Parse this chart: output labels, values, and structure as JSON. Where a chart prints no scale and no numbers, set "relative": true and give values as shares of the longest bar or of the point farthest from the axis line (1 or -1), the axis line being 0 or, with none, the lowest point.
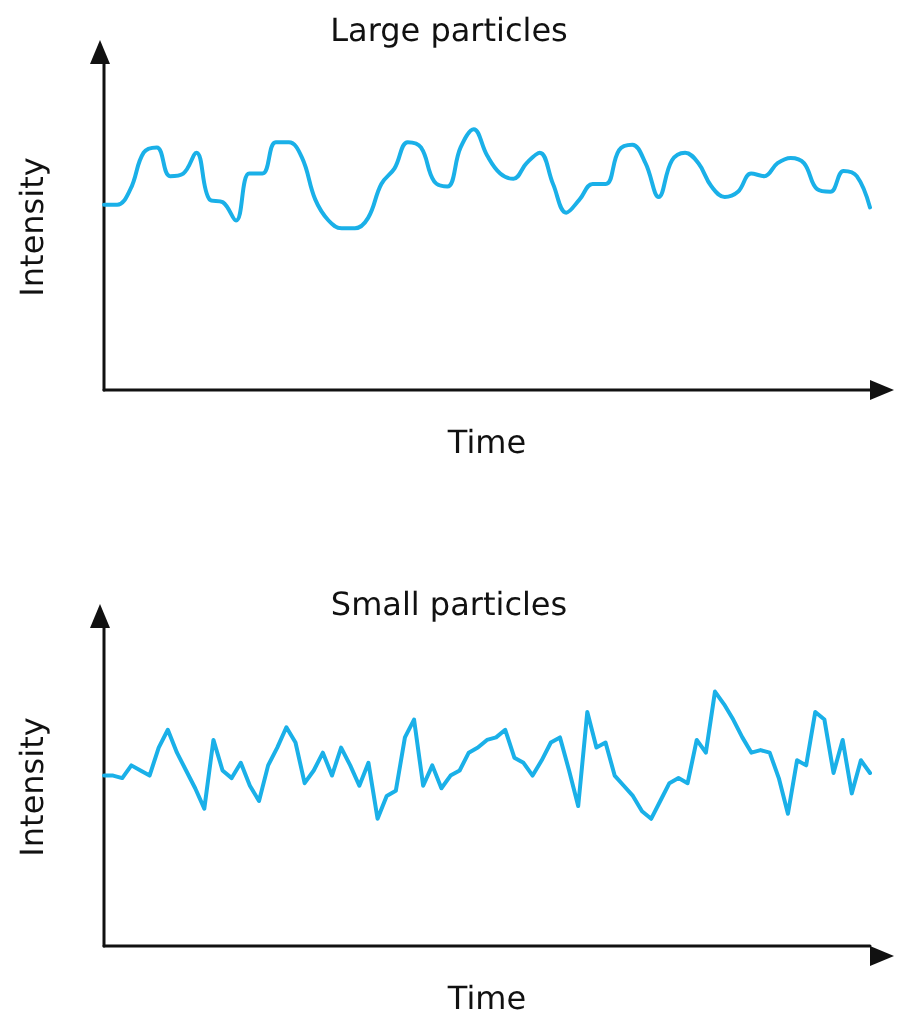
{
  "chart_data": [
    {
      "type": "line",
      "title": "Large particles",
      "xlabel": "Time",
      "ylabel": "Intensity",
      "relative": true,
      "categories": [
        null,
        null,
        null,
        null,
        null,
        null,
        null,
        null,
        null,
        null,
        null,
        null,
        null,
        null,
        null,
        null,
        null,
        null,
        null,
        null,
        null,
        null,
        null,
        null,
        null,
        null,
        null,
        null,
        null,
        null,
        null,
        null,
        null,
        null,
        null,
        null,
        null,
        null,
        null,
        null,
        null,
        null,
        null,
        null,
        null,
        null,
        null,
        null,
        null,
        null,
        null,
        null,
        null,
        null,
        null,
        null,
        null,
        null,
        null
      ],
      "series": [
        {
          "color": "#1ab0e8",
          "values": [
            0.71,
            0.71,
            0.77,
            0.91,
            0.93,
            0.82,
            0.83,
            0.91,
            0.73,
            0.72,
            0.65,
            0.83,
            0.83,
            0.95,
            0.95,
            0.89,
            0.73,
            0.65,
            0.62,
            0.62,
            0.66,
            0.79,
            0.85,
            0.95,
            0.93,
            0.8,
            0.78,
            0.93,
            1.0,
            0.9,
            0.83,
            0.81,
            0.87,
            0.91,
            0.79,
            0.68,
            0.73,
            0.79,
            0.79,
            0.92,
            0.94,
            0.87,
            0.74,
            0.88,
            0.91,
            0.87,
            0.78,
            0.74,
            0.76,
            0.83,
            0.82,
            0.87,
            0.89,
            0.87,
            0.77,
            0.76,
            0.84,
            0.82,
            0.7
          ]
        }
      ]
    },
    {
      "type": "line",
      "title": "Small particles",
      "xlabel": "Time",
      "ylabel": "Intensity",
      "relative": true,
      "categories": [
        null,
        null,
        null,
        null,
        null,
        null,
        null,
        null,
        null,
        null,
        null,
        null,
        null,
        null,
        null,
        null,
        null,
        null,
        null,
        null,
        null,
        null,
        null,
        null,
        null,
        null,
        null,
        null,
        null,
        null,
        null,
        null,
        null,
        null,
        null,
        null,
        null,
        null,
        null,
        null,
        null,
        null,
        null,
        null,
        null,
        null,
        null,
        null,
        null,
        null,
        null,
        null,
        null,
        null,
        null,
        null,
        null,
        null,
        null,
        null,
        null,
        null,
        null,
        null,
        null,
        null,
        null,
        null,
        null,
        null,
        null,
        null,
        null,
        null,
        null,
        null,
        null,
        null,
        null,
        null,
        null,
        null,
        null,
        null,
        null
      ],
      "series": [
        {
          "color": "#1ab0e8",
          "values": [
            0.67,
            0.67,
            0.66,
            0.71,
            0.69,
            0.67,
            0.78,
            0.85,
            0.76,
            0.69,
            0.62,
            0.54,
            0.81,
            0.69,
            0.66,
            0.72,
            0.63,
            0.57,
            0.71,
            0.78,
            0.86,
            0.8,
            0.64,
            0.69,
            0.76,
            0.67,
            0.78,
            0.71,
            0.63,
            0.72,
            0.5,
            0.59,
            0.61,
            0.82,
            0.89,
            0.63,
            0.71,
            0.62,
            0.67,
            0.69,
            0.76,
            0.78,
            0.81,
            0.82,
            0.85,
            0.74,
            0.72,
            0.67,
            0.73,
            0.8,
            0.82,
            0.69,
            0.55,
            0.92,
            0.78,
            0.8,
            0.67,
            0.63,
            0.59,
            0.53,
            0.5,
            0.57,
            0.64,
            0.66,
            0.64,
            0.81,
            0.76,
            1.0,
            0.95,
            0.89,
            0.82,
            0.76,
            0.77,
            0.76,
            0.66,
            0.52,
            0.73,
            0.71,
            0.92,
            0.89,
            0.68,
            0.81,
            0.6,
            0.73,
            0.68
          ]
        }
      ]
    }
  ]
}
